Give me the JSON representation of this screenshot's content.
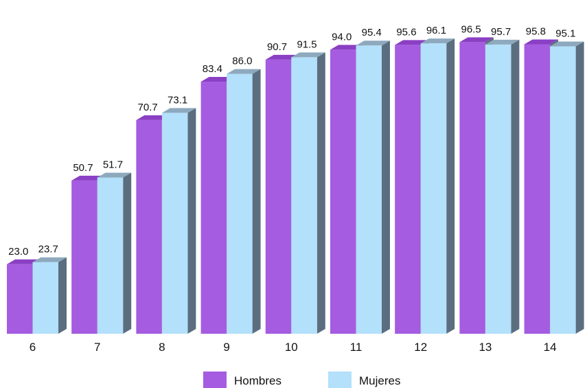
{
  "chart_data": {
    "type": "bar",
    "categories": [
      "6",
      "7",
      "8",
      "9",
      "10",
      "11",
      "12",
      "13",
      "14"
    ],
    "series": [
      {
        "name": "Hombres",
        "values": [
          23.0,
          50.7,
          70.7,
          83.4,
          90.7,
          94.0,
          95.6,
          96.5,
          95.8
        ],
        "labels": [
          "23.0",
          "50.7",
          "70.7",
          "83.4",
          "90.7",
          "94.0",
          "95.6",
          "96.5",
          "95.8"
        ],
        "color": "#a55ce0",
        "top_color": "#8a3fc4",
        "side_color": "#5b6e80"
      },
      {
        "name": "Mujeres",
        "values": [
          23.7,
          51.7,
          73.1,
          86.0,
          91.5,
          95.4,
          96.1,
          95.7,
          95.1
        ],
        "labels": [
          "23.7",
          "51.7",
          "73.1",
          "86.0",
          "91.5",
          "95.4",
          "96.1",
          "95.7",
          "95.1"
        ],
        "color": "#b3e0fb",
        "top_color": "#8ea9bd",
        "side_color": "#5b6e80"
      }
    ],
    "ylim": [
      0,
      100
    ],
    "legend": "bottom",
    "grid": false,
    "bar_style": "3d"
  }
}
